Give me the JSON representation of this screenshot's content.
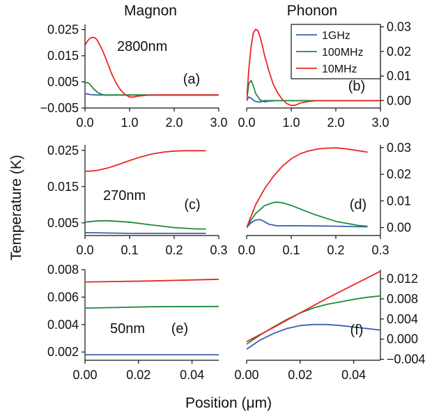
{
  "figure": {
    "column_titles": [
      "Magnon",
      "Phonon"
    ],
    "ylabel": "Temperature (K)",
    "xlabel": "Position (μm)",
    "legend": [
      "1GHz",
      "100MHz",
      "10MHz"
    ],
    "colors": {
      "1GHz": "#3a5fb0",
      "100MHz": "#1f8a3c",
      "10MHz": "#e8281f",
      "axes": "#111111"
    }
  },
  "chart_data": [
    {
      "panel": "(a)",
      "type": "line",
      "column": "Magnon",
      "annotation": "2800nm",
      "xlim": [
        0,
        3.0
      ],
      "ylim": [
        -0.005,
        0.027
      ],
      "x_ticks": [
        "0.0",
        "1.0",
        "2.0",
        "3.0"
      ],
      "x_tick_values": [
        0,
        1,
        2,
        3
      ],
      "y_ticks": [
        "0.025",
        "0.015",
        "0.005",
        "−0.005"
      ],
      "y_tick_values": [
        0.025,
        0.015,
        0.005,
        -0.005
      ],
      "series": [
        {
          "name": "1GHz",
          "x": [
            0,
            0.05,
            0.1,
            0.15,
            0.25,
            0.4,
            3.0
          ],
          "y": [
            0.0005,
            0.0004,
            0.0002,
            0.0001,
            0.0,
            0.0,
            0.0
          ]
        },
        {
          "name": "100MHz",
          "x": [
            0,
            0.05,
            0.1,
            0.15,
            0.2,
            0.3,
            0.4,
            0.5,
            0.7,
            3.0
          ],
          "y": [
            0.0045,
            0.0048,
            0.0043,
            0.0033,
            0.0022,
            0.0008,
            0.0001,
            -0.0001,
            0.0,
            0.0
          ]
        },
        {
          "name": "10MHz",
          "x": [
            0,
            0.05,
            0.1,
            0.15,
            0.2,
            0.25,
            0.3,
            0.4,
            0.5,
            0.6,
            0.7,
            0.8,
            0.9,
            1.0,
            1.1,
            1.2,
            1.4,
            1.6,
            1.8,
            2.0,
            3.0
          ],
          "y": [
            0.019,
            0.0205,
            0.0215,
            0.022,
            0.022,
            0.0215,
            0.0202,
            0.0168,
            0.0125,
            0.008,
            0.0045,
            0.0018,
            0.0002,
            -0.0008,
            -0.0008,
            -0.0004,
            -0.0001,
            0.0,
            0.0,
            0.0,
            0.0
          ]
        }
      ]
    },
    {
      "panel": "(b)",
      "type": "line",
      "column": "Phonon",
      "xlim": [
        0,
        3.0
      ],
      "ylim": [
        -0.003,
        0.031
      ],
      "x_ticks": [
        "0.0",
        "1.0",
        "2.0",
        "3.0"
      ],
      "x_tick_values": [
        0,
        1,
        2,
        3
      ],
      "y_ticks": [
        "0.03",
        "0.02",
        "0.01",
        "0.00"
      ],
      "y_tick_values": [
        0.03,
        0.02,
        0.01,
        0.0
      ],
      "series": [
        {
          "name": "1GHz",
          "x": [
            0,
            0.05,
            0.1,
            0.15,
            0.2,
            0.3,
            0.4,
            3.0
          ],
          "y": [
            0.0,
            0.0015,
            0.001,
            0.0002,
            -0.0003,
            -0.0006,
            0.0,
            0.0
          ]
        },
        {
          "name": "100MHz",
          "x": [
            0,
            0.05,
            0.1,
            0.15,
            0.2,
            0.3,
            0.4,
            0.5,
            0.7,
            3.0
          ],
          "y": [
            0.0,
            0.007,
            0.0082,
            0.006,
            0.003,
            0.0003,
            -0.0005,
            -0.0002,
            0.0,
            0.0
          ]
        },
        {
          "name": "10MHz",
          "x": [
            0,
            0.05,
            0.1,
            0.15,
            0.2,
            0.25,
            0.3,
            0.35,
            0.4,
            0.5,
            0.6,
            0.7,
            0.8,
            0.9,
            1.0,
            1.1,
            1.2,
            1.4,
            1.6,
            1.8,
            3.0
          ],
          "y": [
            0.0,
            0.013,
            0.022,
            0.0275,
            0.029,
            0.0285,
            0.026,
            0.0225,
            0.0185,
            0.012,
            0.0065,
            0.003,
            0.0005,
            -0.0012,
            -0.002,
            -0.0018,
            -0.001,
            -0.0003,
            0.0,
            0.0,
            0.0
          ]
        }
      ]
    },
    {
      "panel": "(c)",
      "type": "line",
      "column": "Magnon",
      "annotation": "270nm",
      "xlim": [
        0,
        0.3
      ],
      "ylim": [
        0.0015,
        0.0265
      ],
      "x_ticks": [
        "0.0",
        "0.1",
        "0.2",
        "0.3"
      ],
      "x_tick_values": [
        0,
        0.1,
        0.2,
        0.3
      ],
      "y_ticks": [
        "0.025",
        "0.015",
        "0.005"
      ],
      "y_tick_values": [
        0.025,
        0.015,
        0.005
      ],
      "series": [
        {
          "name": "1GHz",
          "x": [
            0,
            0.05,
            0.1,
            0.15,
            0.2,
            0.27
          ],
          "y": [
            0.0023,
            0.0022,
            0.0021,
            0.0021,
            0.0021,
            0.0021
          ]
        },
        {
          "name": "100MHz",
          "x": [
            0,
            0.025,
            0.05,
            0.1,
            0.15,
            0.2,
            0.25,
            0.27
          ],
          "y": [
            0.0052,
            0.0055,
            0.0056,
            0.0052,
            0.0044,
            0.0037,
            0.0033,
            0.0033
          ]
        },
        {
          "name": "10MHz",
          "x": [
            0,
            0.025,
            0.05,
            0.075,
            0.1,
            0.125,
            0.15,
            0.175,
            0.2,
            0.225,
            0.25,
            0.27
          ],
          "y": [
            0.0192,
            0.0194,
            0.0201,
            0.0211,
            0.0222,
            0.0232,
            0.024,
            0.0245,
            0.0248,
            0.0249,
            0.0249,
            0.0249
          ]
        }
      ]
    },
    {
      "panel": "(d)",
      "type": "line",
      "column": "Phonon",
      "xlim": [
        0,
        0.3
      ],
      "ylim": [
        -0.003,
        0.031
      ],
      "x_ticks": [
        "0.0",
        "0.1",
        "0.2",
        "0.3"
      ],
      "x_tick_values": [
        0,
        0.1,
        0.2,
        0.3
      ],
      "y_ticks": [
        "0.03",
        "0.02",
        "0.01",
        "0.00"
      ],
      "y_tick_values": [
        0.03,
        0.02,
        0.01,
        0.0
      ],
      "series": [
        {
          "name": "1GHz",
          "x": [
            0,
            0.01,
            0.02,
            0.03,
            0.04,
            0.05,
            0.07,
            0.1,
            0.15,
            0.2,
            0.25,
            0.27
          ],
          "y": [
            0.0,
            0.0018,
            0.0028,
            0.003,
            0.0022,
            0.0012,
            0.0006,
            0.0007,
            0.0006,
            0.0005,
            0.0003,
            0.0003
          ]
        },
        {
          "name": "100MHz",
          "x": [
            0,
            0.01,
            0.02,
            0.04,
            0.06,
            0.07,
            0.08,
            0.1,
            0.12,
            0.15,
            0.2,
            0.25,
            0.27
          ],
          "y": [
            0.0,
            0.0028,
            0.0052,
            0.0082,
            0.0094,
            0.0095,
            0.0093,
            0.0083,
            0.007,
            0.005,
            0.0023,
            0.0008,
            0.0005
          ]
        },
        {
          "name": "10MHz",
          "x": [
            0,
            0.02,
            0.04,
            0.06,
            0.08,
            0.1,
            0.12,
            0.14,
            0.16,
            0.18,
            0.2,
            0.22,
            0.24,
            0.26,
            0.27
          ],
          "y": [
            0.0,
            0.0085,
            0.0145,
            0.0192,
            0.023,
            0.0258,
            0.0277,
            0.0288,
            0.0295,
            0.0298,
            0.0299,
            0.0296,
            0.0291,
            0.0286,
            0.0283
          ]
        }
      ]
    },
    {
      "panel": "(e)",
      "type": "line",
      "column": "Magnon",
      "annotation": "50nm",
      "xlim": [
        0,
        0.05
      ],
      "ylim": [
        0.0014,
        0.008
      ],
      "x_ticks": [
        "0.00",
        "0.02",
        "0.04"
      ],
      "x_tick_values": [
        0,
        0.02,
        0.04
      ],
      "y_ticks": [
        "0.008",
        "0.006",
        "0.004",
        "0.002"
      ],
      "y_tick_values": [
        0.008,
        0.006,
        0.004,
        0.002
      ],
      "series": [
        {
          "name": "1GHz",
          "x": [
            0,
            0.05
          ],
          "y": [
            0.0018,
            0.0018
          ]
        },
        {
          "name": "100MHz",
          "x": [
            0,
            0.025,
            0.05
          ],
          "y": [
            0.0052,
            0.0053,
            0.00532
          ]
        },
        {
          "name": "10MHz",
          "x": [
            0,
            0.025,
            0.05
          ],
          "y": [
            0.0071,
            0.00718,
            0.0073
          ]
        }
      ]
    },
    {
      "panel": "(f)",
      "type": "line",
      "column": "Phonon",
      "xlim": [
        0,
        0.05
      ],
      "ylim": [
        -0.0042,
        0.0138
      ],
      "x_ticks": [
        "0.00",
        "0.02",
        "0.04"
      ],
      "x_tick_values": [
        0,
        0.02,
        0.04
      ],
      "y_ticks": [
        "0.012",
        "0.008",
        "0.004",
        "0.000",
        "−0.004"
      ],
      "y_tick_values": [
        0.012,
        0.008,
        0.004,
        0.0,
        -0.004
      ],
      "series": [
        {
          "name": "1GHz",
          "x": [
            0,
            0.005,
            0.01,
            0.015,
            0.02,
            0.025,
            0.03,
            0.035,
            0.04,
            0.045,
            0.05
          ],
          "y": [
            -0.002,
            -0.0002,
            0.0011,
            0.0021,
            0.0027,
            0.0029,
            0.0029,
            0.0027,
            0.0024,
            0.0021,
            0.0018
          ]
        },
        {
          "name": "100MHz",
          "x": [
            0,
            0.005,
            0.01,
            0.015,
            0.02,
            0.025,
            0.03,
            0.035,
            0.04,
            0.045,
            0.05
          ],
          "y": [
            -0.001,
            0.0008,
            0.0024,
            0.0039,
            0.0052,
            0.0062,
            0.0069,
            0.0074,
            0.0079,
            0.0083,
            0.0086
          ]
        },
        {
          "name": "10MHz",
          "x": [
            0,
            0.01,
            0.02,
            0.03,
            0.04,
            0.05
          ],
          "y": [
            -0.0005,
            0.0023,
            0.0052,
            0.0081,
            0.0108,
            0.0135
          ]
        }
      ]
    }
  ]
}
